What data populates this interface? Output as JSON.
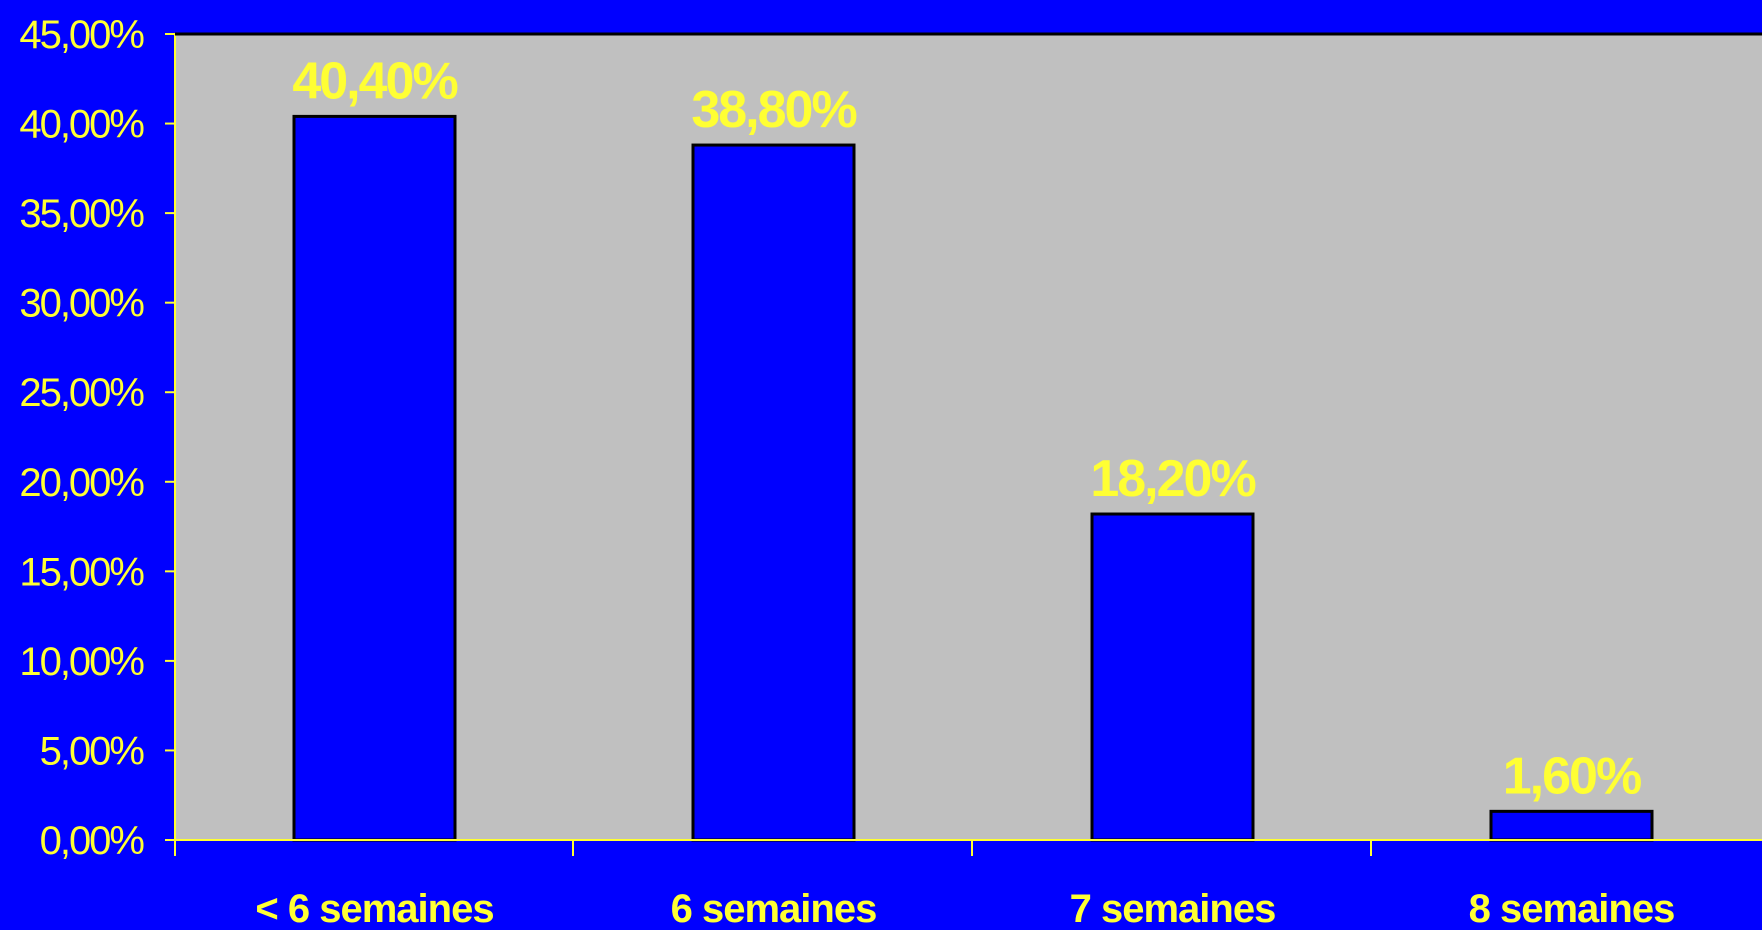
{
  "chart_data": {
    "type": "bar",
    "categories": [
      "< 6 semaines",
      "6 semaines",
      "7 semaines",
      "8 semaines"
    ],
    "values": [
      40.4,
      38.8,
      18.2,
      1.6
    ],
    "data_labels": [
      "40,40%",
      "38,80%",
      "18,20%",
      "1,60%"
    ],
    "y_ticks": [
      0,
      5,
      10,
      15,
      20,
      25,
      30,
      35,
      40,
      45
    ],
    "y_tick_labels": [
      "0,00%",
      "5,00%",
      "10,00%",
      "15,00%",
      "20,00%",
      "25,00%",
      "30,00%",
      "35,00%",
      "40,00%",
      "45,00%"
    ],
    "ylim": [
      0,
      45
    ],
    "title": "",
    "xlabel": "",
    "ylabel": "",
    "grid": false,
    "legend": "none",
    "colors": {
      "background": "#0000ff",
      "plot_area": "#c0c0c0",
      "bar_fill": "#0000ff",
      "bar_stroke": "#000000",
      "text": "#ffff33"
    }
  }
}
